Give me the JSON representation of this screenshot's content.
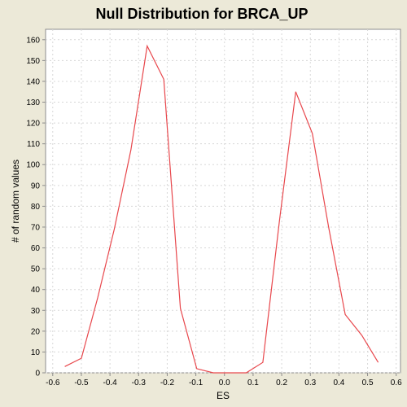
{
  "chart_data": {
    "type": "line",
    "title": "Null Distribution for BRCA_UP",
    "xlabel": "ES",
    "ylabel": "# of random values",
    "xlim": [
      -0.625,
      0.615
    ],
    "ylim": [
      0,
      165
    ],
    "xticks": [
      -0.6,
      -0.5,
      -0.4,
      -0.3,
      -0.2,
      -0.1,
      0.0,
      0.1,
      0.2,
      0.3,
      0.4,
      0.5,
      0.6
    ],
    "xtick_labels": [
      "-0.6",
      "-0.5",
      "-0.4",
      "-0.3",
      "-0.2",
      "-0.1",
      "0.0",
      "0.1",
      "0.2",
      "0.3",
      "0.4",
      "0.5",
      "0.6"
    ],
    "yticks": [
      0,
      10,
      20,
      30,
      40,
      50,
      60,
      70,
      80,
      90,
      100,
      110,
      120,
      130,
      140,
      150,
      160
    ],
    "ytick_labels": [
      "0",
      "10",
      "20",
      "30",
      "40",
      "50",
      "60",
      "70",
      "80",
      "90",
      "100",
      "110",
      "120",
      "130",
      "140",
      "150",
      "160"
    ],
    "grid": true,
    "line_color": "#e8474c",
    "x": [
      -0.558,
      -0.5,
      -0.443,
      -0.385,
      -0.327,
      -0.27,
      -0.212,
      -0.154,
      -0.097,
      -0.039,
      0.019,
      0.076,
      0.134,
      0.192,
      0.249,
      0.307,
      0.364,
      0.422,
      0.48,
      0.537
    ],
    "y": [
      3,
      7,
      36,
      69,
      107,
      157,
      141,
      31,
      2,
      0,
      0,
      0,
      5,
      73,
      135,
      115,
      70,
      28,
      18,
      5
    ]
  }
}
